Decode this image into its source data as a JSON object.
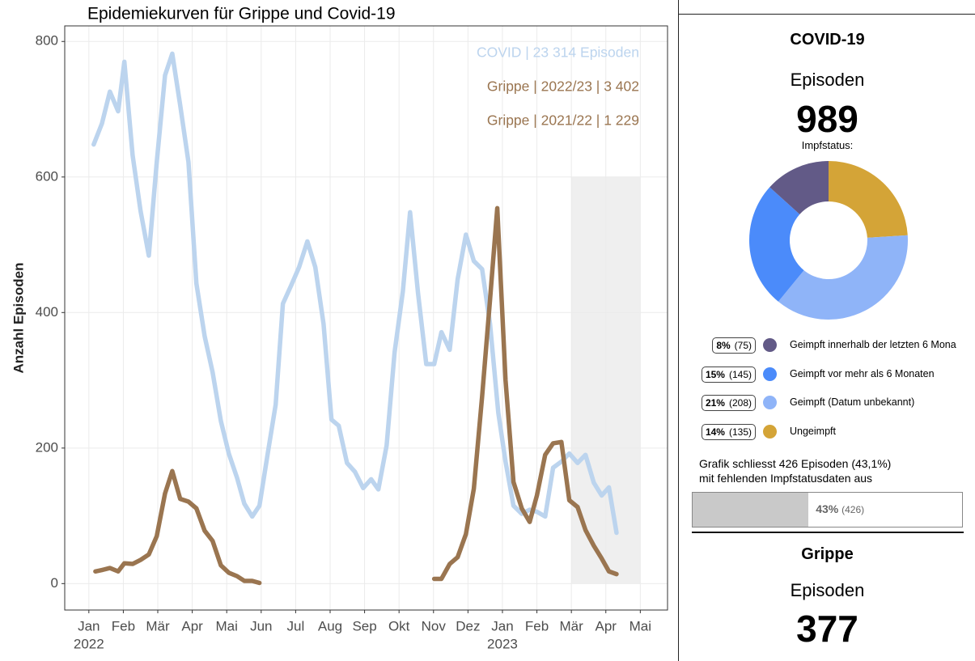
{
  "chart_data": {
    "type": "line",
    "title": "Epidemiekurven für Grippe und Covid-19",
    "ylabel": "Anzahl Episoden",
    "xlim": [
      -0.7,
      16.79
    ],
    "ylim": [
      -39,
      823
    ],
    "xticks": [
      {
        "value": 0,
        "label": "Jan"
      },
      {
        "value": 1,
        "label": "Feb"
      },
      {
        "value": 2,
        "label": "Mär"
      },
      {
        "value": 3,
        "label": "Apr"
      },
      {
        "value": 4,
        "label": "Mai"
      },
      {
        "value": 5,
        "label": "Jun"
      },
      {
        "value": 6,
        "label": "Jul"
      },
      {
        "value": 7,
        "label": "Aug"
      },
      {
        "value": 8,
        "label": "Sep"
      },
      {
        "value": 9,
        "label": "Okt"
      },
      {
        "value": 10,
        "label": "Nov"
      },
      {
        "value": 11,
        "label": "Dez"
      },
      {
        "value": 12,
        "label": "Jan"
      },
      {
        "value": 13,
        "label": "Feb"
      },
      {
        "value": 14,
        "label": "Mär"
      },
      {
        "value": 15,
        "label": "Apr"
      },
      {
        "value": 16,
        "label": "Mai"
      }
    ],
    "year_labels": [
      {
        "value": 0,
        "label": "2022"
      },
      {
        "value": 12,
        "label": "2023"
      }
    ],
    "yticks": [
      0,
      200,
      400,
      600,
      800
    ],
    "grid": true,
    "highlight": {
      "x": [
        14,
        16
      ],
      "y": [
        0,
        600
      ],
      "color": "#efefef"
    },
    "series": [
      {
        "name": "COVID | 23 314 Episoden",
        "color": "#bcd4ee",
        "x": [
          0.14,
          0.38,
          0.61,
          0.85,
          1.03,
          1.27,
          1.5,
          1.74,
          1.97,
          2.21,
          2.42,
          2.65,
          2.89,
          3.12,
          3.36,
          3.59,
          3.83,
          4.06,
          4.3,
          4.51,
          4.74,
          4.95,
          5.19,
          5.42,
          5.63,
          5.87,
          6.1,
          6.34,
          6.57,
          6.81,
          7.04,
          7.25,
          7.49,
          7.72,
          7.96,
          8.19,
          8.4,
          8.64,
          8.87,
          9.11,
          9.32,
          9.55,
          9.79,
          10.02,
          10.23,
          10.47,
          10.7,
          10.94,
          11.17,
          11.41,
          11.64,
          11.88,
          12.09,
          12.32,
          12.56,
          12.79,
          13.0,
          13.24,
          13.47,
          13.71,
          13.94,
          14.18,
          14.41,
          14.65,
          14.88,
          15.09,
          15.31
        ],
        "values": [
          648,
          679,
          726,
          697,
          770,
          632,
          550,
          484,
          622,
          750,
          782,
          706,
          622,
          443,
          365,
          312,
          240,
          192,
          156,
          118,
          99,
          115,
          192,
          264,
          413,
          440,
          467,
          505,
          467,
          383,
          242,
          233,
          178,
          165,
          141,
          154,
          139,
          204,
          341,
          431,
          548,
          429,
          324,
          324,
          371,
          345,
          449,
          515,
          476,
          464,
          383,
          252,
          180,
          115,
          103,
          109,
          106,
          99,
          171,
          180,
          192,
          178,
          190,
          149,
          130,
          142,
          75
        ]
      },
      {
        "name": "Grippe | 2022/23 | 3 402",
        "color": "#9a7550",
        "x": [
          10.02,
          10.23,
          10.47,
          10.7,
          10.94,
          11.17,
          11.41,
          11.64,
          11.85,
          12.09,
          12.32,
          12.56,
          12.79,
          13.0,
          13.24,
          13.47,
          13.71,
          13.94,
          14.18,
          14.41,
          14.65,
          14.88,
          15.09,
          15.31
        ],
        "values": [
          7,
          7,
          29,
          39,
          73,
          140,
          276,
          419,
          554,
          300,
          150,
          111,
          91,
          130,
          190,
          207,
          209,
          123,
          113,
          79,
          56,
          37,
          18,
          14
        ]
      },
      {
        "name": "Grippe | 2021/22 | 1 229",
        "color": "#9a7550",
        "x": [
          0.19,
          0.38,
          0.61,
          0.85,
          1.03,
          1.27,
          1.5,
          1.74,
          1.97,
          2.21,
          2.42,
          2.65,
          2.89,
          3.12,
          3.36,
          3.59,
          3.83,
          4.06,
          4.3,
          4.51,
          4.74,
          4.95
        ],
        "values": [
          18,
          20,
          23,
          18,
          30,
          29,
          35,
          43,
          70,
          133,
          166,
          125,
          121,
          111,
          78,
          63,
          27,
          16,
          11,
          4,
          4,
          1
        ]
      }
    ]
  },
  "panel": {
    "covid": {
      "title": "COVID-19",
      "episodes_label": "Episoden",
      "episodes": 989,
      "vaccine_label": "Impfstatus:",
      "legend": [
        {
          "pct_label": "8%",
          "count": 75,
          "count_label": "(75)",
          "label": "Geimpft innerhalb der letzten 6 Mona",
          "color": "#625a87"
        },
        {
          "pct_label": "15%",
          "count": 145,
          "count_label": "(145)",
          "label": "Geimpft vor mehr als 6 Monaten",
          "color": "#4b8bfa"
        },
        {
          "pct_label": "21%",
          "count": 208,
          "count_label": "(208)",
          "label": "Geimpft (Datum unbekannt)",
          "color": "#8fb4f8"
        },
        {
          "pct_label": "14%",
          "count": 135,
          "count_label": "(135)",
          "label": "Ungeimpft",
          "color": "#d4a437"
        }
      ],
      "note": [
        "Grafik schliesst 426 Episoden (43,1%)",
        "mit fehlenden Impfstatusdaten aus"
      ],
      "missing": {
        "value": 43,
        "label": "43%",
        "count_label": "(426)"
      }
    },
    "flu": {
      "title": "Grippe",
      "episodes_label": "Episoden",
      "episodes": 377
    }
  }
}
